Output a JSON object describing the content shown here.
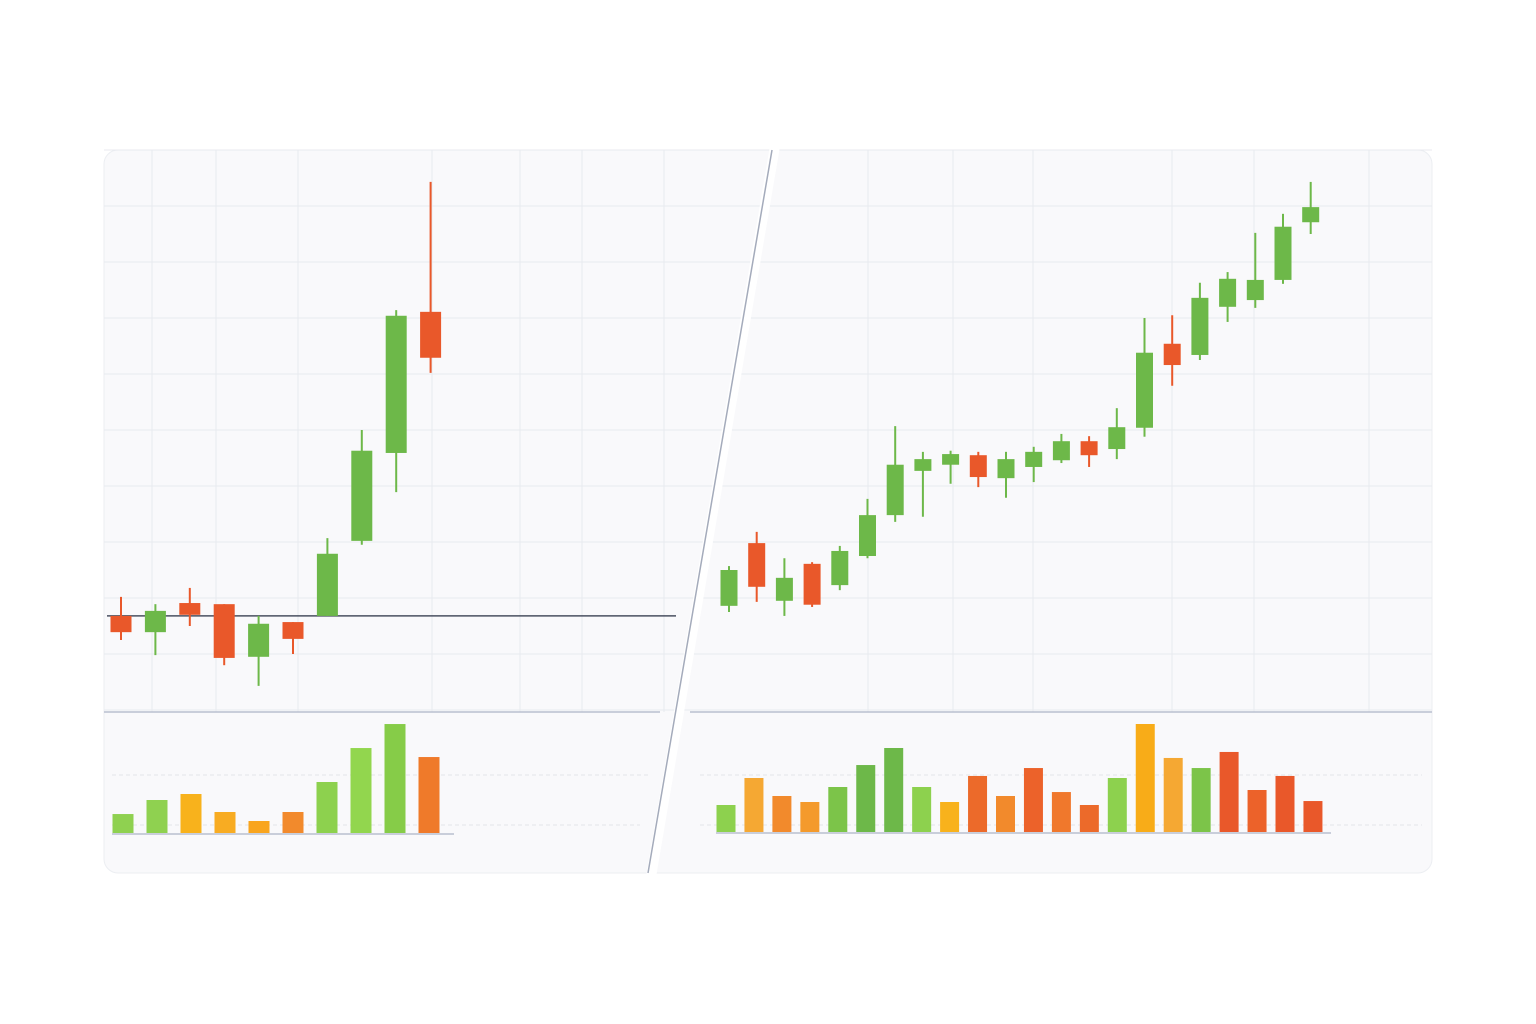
{
  "chart_data": [
    {
      "type": "candlestick",
      "grid": true,
      "up_color": "#6db849",
      "down_color": "#e9582a",
      "ylim": [
        0,
        100
      ],
      "yticks": [
        0,
        10,
        20,
        30,
        40,
        50,
        60,
        70,
        80,
        90,
        100
      ],
      "reference_line": 16.8,
      "open": [
        16.8,
        13.9,
        19.1,
        18.9,
        9.5,
        15.7,
        16.8,
        30.2,
        45.9,
        71.1
      ],
      "high": [
        20.2,
        18.9,
        21.8,
        18.9,
        16.8,
        15.7,
        30.7,
        50.0,
        71.4,
        94.3
      ],
      "low": [
        12.5,
        9.8,
        15.0,
        8.0,
        4.3,
        10.0,
        16.8,
        29.5,
        38.9,
        60.2
      ],
      "close": [
        13.9,
        17.7,
        17.0,
        9.3,
        15.4,
        12.7,
        27.9,
        46.3,
        70.4,
        62.9
      ],
      "volume_lim": [
        0,
        100
      ],
      "volume": [
        15.8,
        27.5,
        32.5,
        17.5,
        10,
        17.5,
        42.5,
        70.8,
        90.8,
        63.3
      ],
      "volume_colors": [
        "#8fd150",
        "#8fd150",
        "#f8b21c",
        "#f8ac22",
        "#f9a51e",
        "#f28a2c",
        "#8dd14e",
        "#92d64e",
        "#86cc48",
        "#ef7a2a"
      ]
    },
    {
      "type": "candlestick",
      "grid": true,
      "up_color": "#6db849",
      "down_color": "#e9582a",
      "ylim": [
        0,
        100
      ],
      "yticks": [
        0,
        10,
        20,
        30,
        40,
        50,
        60,
        70,
        80,
        90,
        100
      ],
      "open": [
        18.6,
        29.8,
        19.5,
        26.1,
        22.3,
        27.5,
        34.8,
        42.7,
        43.8,
        45.5,
        41.4,
        43.4,
        44.6,
        48.0,
        46.6,
        50.4,
        65.4,
        63.4,
        72.0,
        73.2,
        76.8,
        87.1
      ],
      "high": [
        25.7,
        31.8,
        27.1,
        26.4,
        29.3,
        37.7,
        50.7,
        46.1,
        46.3,
        46.1,
        46.1,
        47.0,
        49.3,
        48.9,
        53.9,
        70.0,
        70.5,
        76.3,
        78.2,
        85.2,
        88.6,
        94.3
      ],
      "low": [
        17.5,
        19.3,
        16.8,
        18.4,
        21.4,
        27.1,
        33.6,
        34.5,
        40.4,
        39.8,
        37.9,
        40.7,
        44.1,
        43.4,
        44.8,
        48.8,
        57.9,
        62.5,
        69.3,
        71.8,
        76.1,
        85.0
      ],
      "close": [
        25.0,
        22.0,
        23.6,
        18.8,
        28.4,
        34.8,
        43.8,
        44.8,
        45.7,
        41.6,
        44.8,
        46.1,
        48.0,
        45.5,
        50.5,
        63.8,
        61.6,
        73.6,
        77.0,
        76.8,
        86.3,
        89.8
      ],
      "volume_lim": [
        0,
        100
      ],
      "volume": [
        22.5,
        45,
        30,
        25,
        37.5,
        55.8,
        70,
        37.5,
        25,
        46.7,
        30,
        53.3,
        33.3,
        22.5,
        45,
        90,
        61.7,
        53.3,
        66.7,
        35,
        46.7,
        25.8
      ],
      "volume_colors": [
        "#8dd14e",
        "#f5a833",
        "#f28a2c",
        "#f49a2c",
        "#7cc449",
        "#6db849",
        "#6db849",
        "#8dd14e",
        "#f8b21c",
        "#ec6a2a",
        "#f28a2c",
        "#ec622a",
        "#f0782c",
        "#ec6a2a",
        "#8dd14e",
        "#f8ac18",
        "#f5a833",
        "#7cc449",
        "#e9582a",
        "#ec622a",
        "#e9582a",
        "#e9582a"
      ]
    }
  ]
}
